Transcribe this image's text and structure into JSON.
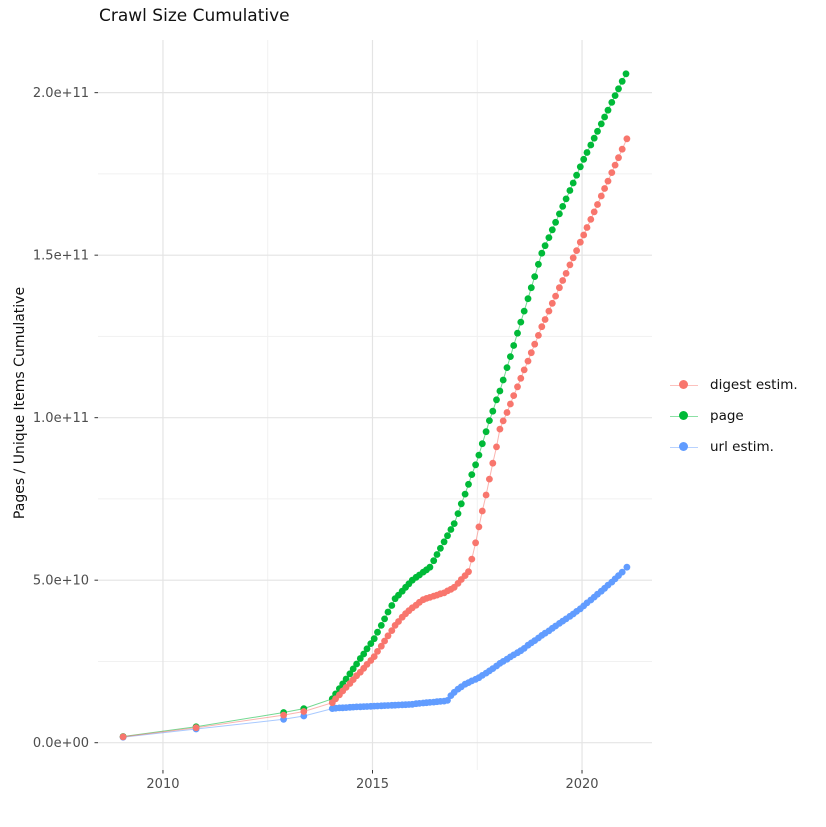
{
  "chart_data": {
    "type": "scatter",
    "title": "Crawl Size Cumulative",
    "xlabel": "",
    "ylabel": "Pages / Unique Items Cumulative",
    "value_unit": "billions (1e9)",
    "grid": "on",
    "legend_position": "right",
    "x_domain": [
      2008.45,
      2021.67
    ],
    "y_domain_billions": [
      -8.4,
      216.2
    ],
    "x_ticks": [
      {
        "v": 2010,
        "label": "2010"
      },
      {
        "v": 2015,
        "label": "2015"
      },
      {
        "v": 2020,
        "label": "2020"
      }
    ],
    "y_ticks": [
      {
        "v": 0,
        "label": "0.0e+00"
      },
      {
        "v": 50,
        "label": "5.0e+10"
      },
      {
        "v": 100,
        "label": "1.0e+11"
      },
      {
        "v": 150,
        "label": "1.5e+11"
      },
      {
        "v": 200,
        "label": "2.0e+11"
      }
    ],
    "x_minor": [
      2012.5,
      2017.5
    ],
    "y_minor": [
      25,
      75,
      125,
      175
    ],
    "colors": {
      "grid_major": "#e4e4e4",
      "grid_minor": "#f1f1f1",
      "tick_mark": "#333333",
      "tick_label": "#4d4d4d"
    },
    "series": [
      {
        "name": "digest estim.",
        "color": "#F8766D",
        "points": [
          [
            2009.05,
            1.8
          ],
          [
            2010.79,
            4.6
          ],
          [
            2012.88,
            8.5
          ],
          [
            2013.36,
            9.6
          ],
          [
            2014.04,
            12.3
          ],
          [
            2014.12,
            13.5
          ],
          [
            2014.21,
            14.7
          ],
          [
            2014.29,
            15.9
          ],
          [
            2014.37,
            17.0
          ],
          [
            2014.46,
            18.2
          ],
          [
            2014.54,
            19.4
          ],
          [
            2014.62,
            20.6
          ],
          [
            2014.71,
            21.7
          ],
          [
            2014.79,
            22.9
          ],
          [
            2014.87,
            24.1
          ],
          [
            2014.96,
            25.3
          ],
          [
            2015.04,
            26.5
          ],
          [
            2015.12,
            28.1
          ],
          [
            2015.21,
            29.7
          ],
          [
            2015.29,
            31.3
          ],
          [
            2015.37,
            32.9
          ],
          [
            2015.46,
            34.5
          ],
          [
            2015.54,
            36.1
          ],
          [
            2015.62,
            37.3
          ],
          [
            2015.71,
            38.6
          ],
          [
            2015.79,
            39.7
          ],
          [
            2015.87,
            40.6
          ],
          [
            2015.95,
            41.5
          ],
          [
            2016.04,
            42.3
          ],
          [
            2016.12,
            43.2
          ],
          [
            2016.21,
            44.0
          ],
          [
            2016.29,
            44.4
          ],
          [
            2016.37,
            44.7
          ],
          [
            2016.46,
            45.1
          ],
          [
            2016.54,
            45.4
          ],
          [
            2016.62,
            45.8
          ],
          [
            2016.71,
            46.1
          ],
          [
            2016.79,
            46.7
          ],
          [
            2016.87,
            47.2
          ],
          [
            2016.95,
            47.8
          ],
          [
            2017.04,
            49.0
          ],
          [
            2017.12,
            50.2
          ],
          [
            2017.21,
            51.4
          ],
          [
            2017.29,
            52.6
          ],
          [
            2017.37,
            56.5
          ],
          [
            2017.46,
            61.5
          ],
          [
            2017.54,
            66.4
          ],
          [
            2017.62,
            71.3
          ],
          [
            2017.71,
            76.2
          ],
          [
            2017.79,
            81.1
          ],
          [
            2017.87,
            86.0
          ],
          [
            2017.96,
            91.0
          ],
          [
            2018.04,
            96.5
          ],
          [
            2018.12,
            99.0
          ],
          [
            2018.21,
            101.6
          ],
          [
            2018.29,
            104.2
          ],
          [
            2018.37,
            106.8
          ],
          [
            2018.46,
            109.5
          ],
          [
            2018.54,
            112.1
          ],
          [
            2018.62,
            114.7
          ],
          [
            2018.71,
            117.4
          ],
          [
            2018.79,
            120.0
          ],
          [
            2018.87,
            122.6
          ],
          [
            2018.96,
            125.3
          ],
          [
            2019.04,
            128.0
          ],
          [
            2019.12,
            130.2
          ],
          [
            2019.21,
            132.8
          ],
          [
            2019.29,
            135.2
          ],
          [
            2019.37,
            137.4
          ],
          [
            2019.46,
            140.0
          ],
          [
            2019.54,
            142.2
          ],
          [
            2019.62,
            144.4
          ],
          [
            2019.71,
            147.0
          ],
          [
            2019.79,
            149.2
          ],
          [
            2019.87,
            151.4
          ],
          [
            2019.96,
            154.0
          ],
          [
            2020.04,
            156.2
          ],
          [
            2020.12,
            158.5
          ],
          [
            2020.21,
            161.0
          ],
          [
            2020.29,
            163.3
          ],
          [
            2020.37,
            165.6
          ],
          [
            2020.46,
            168.2
          ],
          [
            2020.54,
            170.5
          ],
          [
            2020.62,
            172.8
          ],
          [
            2020.71,
            175.4
          ],
          [
            2020.79,
            177.7
          ],
          [
            2020.87,
            180.0
          ],
          [
            2020.96,
            182.6
          ],
          [
            2021.07,
            185.8
          ]
        ]
      },
      {
        "name": "page",
        "color": "#00BA38",
        "points": [
          [
            2009.05,
            1.9
          ],
          [
            2010.79,
            4.9
          ],
          [
            2012.88,
            9.3
          ],
          [
            2013.36,
            10.5
          ],
          [
            2014.04,
            13.5
          ],
          [
            2014.12,
            15.0
          ],
          [
            2014.21,
            16.6
          ],
          [
            2014.29,
            18.1
          ],
          [
            2014.37,
            19.6
          ],
          [
            2014.46,
            21.2
          ],
          [
            2014.54,
            22.7
          ],
          [
            2014.62,
            24.2
          ],
          [
            2014.71,
            25.9
          ],
          [
            2014.79,
            27.3
          ],
          [
            2014.87,
            28.9
          ],
          [
            2014.96,
            30.5
          ],
          [
            2015.04,
            32.0
          ],
          [
            2015.12,
            34.0
          ],
          [
            2015.21,
            36.1
          ],
          [
            2015.29,
            38.1
          ],
          [
            2015.37,
            40.2
          ],
          [
            2015.46,
            42.2
          ],
          [
            2015.54,
            44.3
          ],
          [
            2015.62,
            45.4
          ],
          [
            2015.71,
            46.6
          ],
          [
            2015.79,
            47.8
          ],
          [
            2015.87,
            48.9
          ],
          [
            2015.95,
            50.0
          ],
          [
            2016.04,
            50.9
          ],
          [
            2016.12,
            51.6
          ],
          [
            2016.21,
            52.5
          ],
          [
            2016.29,
            53.2
          ],
          [
            2016.37,
            54.0
          ],
          [
            2016.46,
            56.0
          ],
          [
            2016.54,
            57.9
          ],
          [
            2016.62,
            59.8
          ],
          [
            2016.71,
            61.8
          ],
          [
            2016.79,
            63.7
          ],
          [
            2016.87,
            65.6
          ],
          [
            2016.95,
            67.4
          ],
          [
            2017.04,
            70.5
          ],
          [
            2017.12,
            73.5
          ],
          [
            2017.21,
            76.5
          ],
          [
            2017.29,
            79.5
          ],
          [
            2017.37,
            82.5
          ],
          [
            2017.46,
            85.5
          ],
          [
            2017.54,
            88.5
          ],
          [
            2017.62,
            92.0
          ],
          [
            2017.71,
            95.7
          ],
          [
            2017.79,
            99.1
          ],
          [
            2017.87,
            102.0
          ],
          [
            2017.96,
            105.5
          ],
          [
            2018.04,
            108.2
          ],
          [
            2018.12,
            111.6
          ],
          [
            2018.21,
            115.4
          ],
          [
            2018.29,
            118.8
          ],
          [
            2018.37,
            122.2
          ],
          [
            2018.46,
            126.0
          ],
          [
            2018.54,
            129.4
          ],
          [
            2018.62,
            132.8
          ],
          [
            2018.71,
            136.6
          ],
          [
            2018.79,
            140.0
          ],
          [
            2018.87,
            143.4
          ],
          [
            2018.96,
            147.2
          ],
          [
            2019.04,
            150.6
          ],
          [
            2019.12,
            152.9
          ],
          [
            2019.21,
            155.4
          ],
          [
            2019.29,
            157.8
          ],
          [
            2019.37,
            160.1
          ],
          [
            2019.46,
            162.7
          ],
          [
            2019.54,
            165.0
          ],
          [
            2019.62,
            167.3
          ],
          [
            2019.71,
            169.9
          ],
          [
            2019.79,
            172.2
          ],
          [
            2019.87,
            174.6
          ],
          [
            2019.96,
            177.2
          ],
          [
            2020.04,
            179.5
          ],
          [
            2020.12,
            181.6
          ],
          [
            2020.21,
            183.9
          ],
          [
            2020.29,
            186.0
          ],
          [
            2020.37,
            188.1
          ],
          [
            2020.46,
            190.4
          ],
          [
            2020.54,
            192.5
          ],
          [
            2020.62,
            194.6
          ],
          [
            2020.71,
            197.0
          ],
          [
            2020.79,
            199.1
          ],
          [
            2020.87,
            201.2
          ],
          [
            2020.96,
            203.5
          ],
          [
            2021.05,
            205.8
          ]
        ]
      },
      {
        "name": "url estim.",
        "color": "#619CFF",
        "points": [
          [
            2009.05,
            1.7
          ],
          [
            2010.79,
            4.2
          ],
          [
            2012.88,
            7.2
          ],
          [
            2013.36,
            8.2
          ],
          [
            2014.04,
            10.5
          ],
          [
            2014.12,
            10.6
          ],
          [
            2014.21,
            10.7
          ],
          [
            2014.29,
            10.75
          ],
          [
            2014.37,
            10.8
          ],
          [
            2014.46,
            10.9
          ],
          [
            2014.54,
            10.95
          ],
          [
            2014.62,
            11.0
          ],
          [
            2014.71,
            11.05
          ],
          [
            2014.79,
            11.1
          ],
          [
            2014.87,
            11.15
          ],
          [
            2014.96,
            11.2
          ],
          [
            2015.04,
            11.25
          ],
          [
            2015.12,
            11.3
          ],
          [
            2015.21,
            11.35
          ],
          [
            2015.29,
            11.4
          ],
          [
            2015.37,
            11.45
          ],
          [
            2015.46,
            11.5
          ],
          [
            2015.54,
            11.55
          ],
          [
            2015.62,
            11.6
          ],
          [
            2015.71,
            11.65
          ],
          [
            2015.79,
            11.7
          ],
          [
            2015.87,
            11.75
          ],
          [
            2015.95,
            11.8
          ],
          [
            2016.04,
            12.0
          ],
          [
            2016.12,
            12.1
          ],
          [
            2016.21,
            12.2
          ],
          [
            2016.29,
            12.3
          ],
          [
            2016.37,
            12.4
          ],
          [
            2016.46,
            12.5
          ],
          [
            2016.54,
            12.6
          ],
          [
            2016.62,
            12.7
          ],
          [
            2016.71,
            12.8
          ],
          [
            2016.79,
            13.0
          ],
          [
            2016.87,
            14.5
          ],
          [
            2016.95,
            15.5
          ],
          [
            2017.04,
            16.5
          ],
          [
            2017.12,
            17.2
          ],
          [
            2017.21,
            18.0
          ],
          [
            2017.29,
            18.5
          ],
          [
            2017.37,
            19.0
          ],
          [
            2017.46,
            19.5
          ],
          [
            2017.54,
            20.0
          ],
          [
            2017.62,
            20.7
          ],
          [
            2017.71,
            21.4
          ],
          [
            2017.79,
            22.1
          ],
          [
            2017.87,
            22.8
          ],
          [
            2017.96,
            23.6
          ],
          [
            2018.04,
            24.4
          ],
          [
            2018.12,
            25.0
          ],
          [
            2018.21,
            25.7
          ],
          [
            2018.29,
            26.4
          ],
          [
            2018.37,
            27.0
          ],
          [
            2018.46,
            27.7
          ],
          [
            2018.54,
            28.3
          ],
          [
            2018.62,
            29.0
          ],
          [
            2018.71,
            30.0
          ],
          [
            2018.79,
            30.7
          ],
          [
            2018.87,
            31.4
          ],
          [
            2018.96,
            32.2
          ],
          [
            2019.04,
            33.0
          ],
          [
            2019.12,
            33.7
          ],
          [
            2019.21,
            34.4
          ],
          [
            2019.29,
            35.2
          ],
          [
            2019.37,
            35.9
          ],
          [
            2019.46,
            36.7
          ],
          [
            2019.54,
            37.4
          ],
          [
            2019.62,
            38.1
          ],
          [
            2019.71,
            38.9
          ],
          [
            2019.79,
            39.6
          ],
          [
            2019.87,
            40.4
          ],
          [
            2019.96,
            41.2
          ],
          [
            2020.04,
            42.1
          ],
          [
            2020.12,
            43.0
          ],
          [
            2020.21,
            43.9
          ],
          [
            2020.29,
            44.8
          ],
          [
            2020.37,
            45.7
          ],
          [
            2020.46,
            46.6
          ],
          [
            2020.54,
            47.5
          ],
          [
            2020.62,
            48.5
          ],
          [
            2020.71,
            49.4
          ],
          [
            2020.79,
            50.4
          ],
          [
            2020.87,
            51.4
          ],
          [
            2020.96,
            52.5
          ],
          [
            2021.07,
            54.0
          ]
        ]
      }
    ]
  }
}
